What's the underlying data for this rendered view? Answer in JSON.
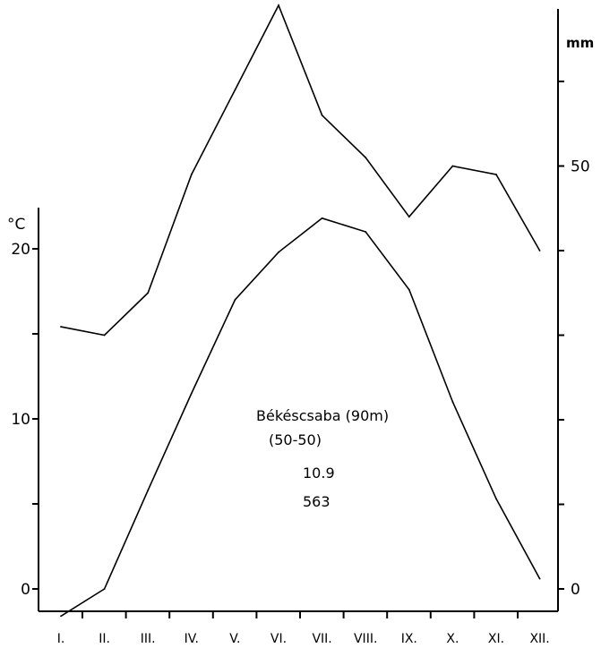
{
  "chart_data": {
    "type": "line",
    "categories": [
      "I.",
      "II.",
      "III.",
      "IV.",
      "V.",
      "VI.",
      "VII.",
      "VIII.",
      "IX.",
      "X.",
      "XI.",
      "XII."
    ],
    "series": [
      {
        "axis": "left",
        "values": [
          -1.6,
          0.0,
          5.8,
          11.5,
          17.0,
          19.8,
          21.8,
          21.0,
          17.6,
          11.0,
          5.3,
          0.6
        ],
        "color": "#000000"
      },
      {
        "axis": "right",
        "values": [
          31,
          30,
          35,
          49,
          59,
          69,
          56,
          51,
          44,
          50,
          49,
          40
        ],
        "color": "#000000"
      }
    ],
    "left_axis": {
      "unit_label": "°C",
      "ylim": [
        -2.5,
        22.5
      ],
      "tick_values": [
        0,
        10,
        20
      ],
      "tick_labels": [
        "0",
        "10",
        "20"
      ],
      "minor_ticks": [
        5,
        15
      ]
    },
    "right_axis": {
      "unit_label": "mm",
      "ylim": [
        -5,
        70
      ],
      "tick_values": [
        0,
        50
      ],
      "tick_labels": [
        "0",
        "50"
      ],
      "minor_ticks": [
        10,
        20,
        30,
        40,
        60
      ]
    },
    "annotations": {
      "station": "Békéscsaba (90m)",
      "period": "(50-50)",
      "mean_temperature": "10.9",
      "annual_precipitation": "563"
    },
    "grid": false,
    "legend": "none"
  }
}
